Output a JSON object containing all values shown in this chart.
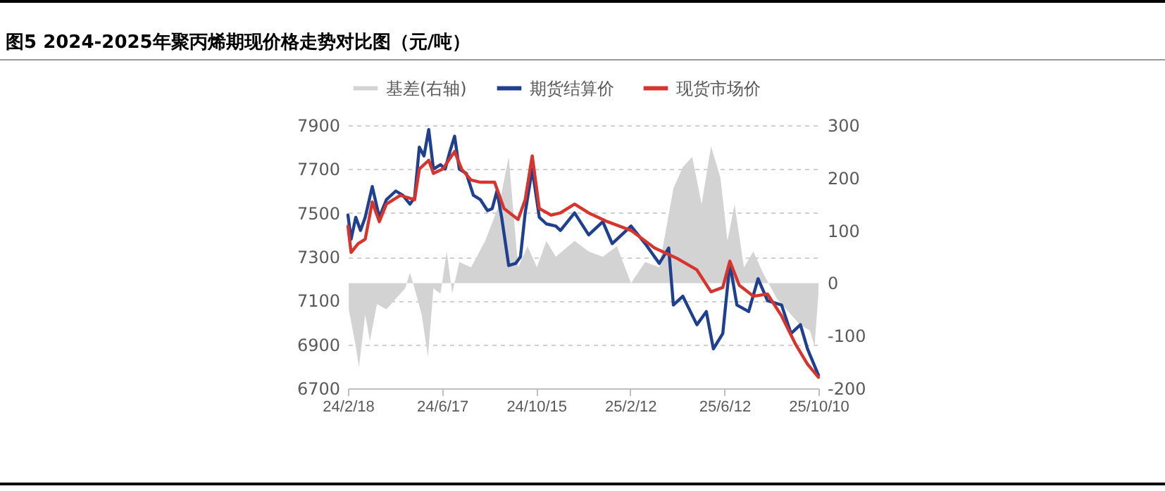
{
  "chart_data": {
    "type": "line",
    "title": "图5  2024-2025年聚丙烯期现价格走势对比图（元/吨）",
    "xlim": [
      "2024-02-18",
      "2025-10-10"
    ],
    "xticks": [
      {
        "value": "2024-02-18",
        "label": "24/2/18"
      },
      {
        "value": "2024-06-17",
        "label": "24/6/17"
      },
      {
        "value": "2024-10-15",
        "label": "24/10/15"
      },
      {
        "value": "2025-02-12",
        "label": "25/2/12"
      },
      {
        "value": "2025-06-12",
        "label": "25/6/12"
      },
      {
        "value": "2025-10-10",
        "label": "25/10/10"
      }
    ],
    "ylim": [
      6700,
      7900
    ],
    "yticks": [
      6700,
      6900,
      7100,
      7300,
      7500,
      7700,
      7900
    ],
    "y2lim": [
      -200,
      300
    ],
    "y2ticks": [
      -200,
      -100,
      0,
      100,
      200,
      300
    ],
    "grid": "y",
    "legend": "top",
    "line_style": "solid",
    "series": [
      {
        "name": "基差(右轴)",
        "type": "area",
        "axis": "y2",
        "color": "#d3d3d3",
        "x": [
          "2024-02-19",
          "2024-02-28",
          "2024-03-03",
          "2024-03-11",
          "2024-03-17",
          "2024-03-26",
          "2024-04-07",
          "2024-04-19",
          "2024-05-01",
          "2024-05-07",
          "2024-05-13",
          "2024-05-22",
          "2024-05-30",
          "2024-06-06",
          "2024-06-15",
          "2024-06-23",
          "2024-06-30",
          "2024-07-09",
          "2024-07-24",
          "2024-08-11",
          "2024-08-29",
          "2024-09-10",
          "2024-09-22",
          "2024-10-04",
          "2024-10-16",
          "2024-10-28",
          "2024-11-09",
          "2024-12-03",
          "2024-12-21",
          "2025-01-08",
          "2025-01-26",
          "2025-02-13",
          "2025-03-03",
          "2025-03-21",
          "2025-04-08",
          "2025-04-20",
          "2025-05-02",
          "2025-05-14",
          "2025-05-26",
          "2025-06-07",
          "2025-06-16",
          "2025-06-25",
          "2025-07-07",
          "2025-07-19",
          "2025-07-31",
          "2025-08-18",
          "2025-09-05",
          "2025-09-17",
          "2025-09-29",
          "2025-10-05",
          "2025-10-10"
        ],
        "values": [
          -50,
          -120,
          -160,
          -60,
          -110,
          -40,
          -50,
          -30,
          -10,
          20,
          -10,
          -60,
          -140,
          -10,
          -20,
          60,
          -20,
          40,
          30,
          80,
          150,
          240,
          30,
          70,
          30,
          80,
          50,
          80,
          60,
          50,
          70,
          0,
          40,
          30,
          180,
          220,
          240,
          150,
          260,
          200,
          80,
          150,
          30,
          60,
          20,
          -30,
          -60,
          -80,
          -90,
          -120,
          -20
        ]
      },
      {
        "name": "期货结算价",
        "type": "line",
        "color": "#1f3f8f",
        "x": [
          "2024-02-18",
          "2024-02-22",
          "2024-02-28",
          "2024-03-05",
          "2024-03-11",
          "2024-03-20",
          "2024-03-29",
          "2024-04-07",
          "2024-04-19",
          "2024-04-28",
          "2024-05-07",
          "2024-05-13",
          "2024-05-19",
          "2024-05-25",
          "2024-05-31",
          "2024-06-06",
          "2024-06-15",
          "2024-06-21",
          "2024-06-27",
          "2024-07-03",
          "2024-07-09",
          "2024-07-18",
          "2024-07-27",
          "2024-08-05",
          "2024-08-14",
          "2024-08-20",
          "2024-08-26",
          "2024-09-01",
          "2024-09-10",
          "2024-09-19",
          "2024-09-25",
          "2024-10-01",
          "2024-10-10",
          "2024-10-19",
          "2024-10-28",
          "2024-11-09",
          "2024-11-15",
          "2024-12-03",
          "2024-12-21",
          "2025-01-08",
          "2025-01-20",
          "2025-02-13",
          "2025-03-03",
          "2025-03-21",
          "2025-04-02",
          "2025-04-08",
          "2025-04-20",
          "2025-05-08",
          "2025-05-20",
          "2025-05-29",
          "2025-06-10",
          "2025-06-19",
          "2025-06-28",
          "2025-07-13",
          "2025-07-25",
          "2025-08-06",
          "2025-08-24",
          "2025-09-05",
          "2025-09-17",
          "2025-09-26",
          "2025-10-10"
        ],
        "values": [
          7490,
          7380,
          7480,
          7420,
          7480,
          7620,
          7480,
          7560,
          7600,
          7580,
          7540,
          7570,
          7800,
          7760,
          7880,
          7700,
          7720,
          7700,
          7780,
          7850,
          7700,
          7680,
          7580,
          7560,
          7510,
          7520,
          7600,
          7480,
          7260,
          7270,
          7300,
          7500,
          7700,
          7480,
          7450,
          7440,
          7420,
          7500,
          7400,
          7460,
          7360,
          7440,
          7360,
          7270,
          7340,
          7080,
          7120,
          6990,
          7050,
          6880,
          6950,
          7270,
          7080,
          7050,
          7200,
          7100,
          7080,
          6950,
          6990,
          6880,
          6760
        ]
      },
      {
        "name": "现货市场价",
        "type": "line",
        "color": "#d6342c",
        "x": [
          "2024-02-18",
          "2024-02-22",
          "2024-03-02",
          "2024-03-11",
          "2024-03-20",
          "2024-03-29",
          "2024-04-07",
          "2024-04-25",
          "2024-05-13",
          "2024-05-19",
          "2024-05-31",
          "2024-06-06",
          "2024-06-18",
          "2024-07-03",
          "2024-07-12",
          "2024-07-24",
          "2024-08-05",
          "2024-08-23",
          "2024-09-04",
          "2024-09-22",
          "2024-10-01",
          "2024-10-10",
          "2024-10-19",
          "2024-11-03",
          "2024-11-15",
          "2024-12-03",
          "2024-12-21",
          "2025-01-14",
          "2025-02-13",
          "2025-03-15",
          "2025-04-14",
          "2025-05-08",
          "2025-05-26",
          "2025-06-10",
          "2025-06-19",
          "2025-07-01",
          "2025-07-19",
          "2025-08-06",
          "2025-08-24",
          "2025-09-11",
          "2025-09-26",
          "2025-10-10"
        ],
        "values": [
          7440,
          7320,
          7360,
          7380,
          7550,
          7460,
          7540,
          7580,
          7560,
          7700,
          7740,
          7680,
          7700,
          7780,
          7700,
          7650,
          7640,
          7640,
          7520,
          7470,
          7560,
          7760,
          7520,
          7490,
          7500,
          7540,
          7500,
          7460,
          7420,
          7340,
          7290,
          7240,
          7140,
          7160,
          7280,
          7170,
          7120,
          7130,
          7030,
          6900,
          6810,
          6750
        ]
      }
    ]
  }
}
